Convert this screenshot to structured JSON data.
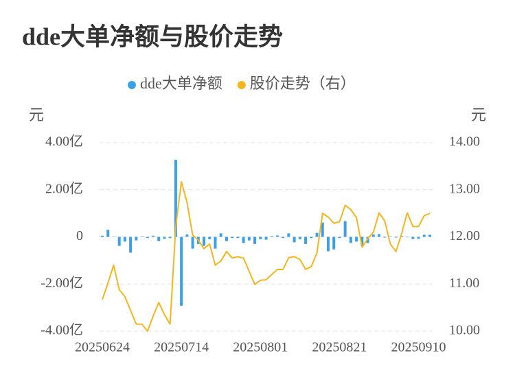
{
  "chart_data": {
    "type": "bar-line",
    "title": "dde大单净额与股价走势",
    "y_label": "元",
    "y2_label": "元",
    "categories": [
      "20250624",
      null,
      null,
      null,
      null,
      null,
      null,
      null,
      null,
      null,
      null,
      null,
      null,
      null,
      "20250714",
      null,
      null,
      null,
      null,
      null,
      null,
      null,
      null,
      null,
      null,
      null,
      null,
      null,
      "20250801",
      null,
      null,
      null,
      null,
      null,
      null,
      null,
      null,
      null,
      null,
      null,
      null,
      null,
      "20250821",
      null,
      null,
      null,
      null,
      null,
      null,
      null,
      null,
      null,
      null,
      null,
      null,
      null,
      "20250910",
      null,
      null
    ],
    "series": [
      {
        "name": "dde大单净额",
        "type": "bar",
        "color": "#3ba0e9",
        "values": [
          0.05,
          0.3,
          0,
          -0.38,
          -0.2,
          -0.67,
          -0.15,
          0.02,
          -0.05,
          0.05,
          -0.18,
          -0.08,
          -0.05,
          3.27,
          -2.92,
          0.1,
          -0.5,
          -0.3,
          -0.38,
          -0.1,
          -0.5,
          0.15,
          -0.18,
          -0.05,
          -0.05,
          -0.26,
          -0.15,
          -0.3,
          -0.1,
          -0.12,
          0.03,
          0.06,
          -0.05,
          0.15,
          -0.23,
          -0.1,
          -0.3,
          -0.05,
          0.17,
          0.61,
          -0.61,
          -0.53,
          -0.05,
          0.67,
          -0.26,
          -0.2,
          -0.38,
          -0.26,
          0.1,
          0.12,
          -0.03,
          0.02,
          -0.03,
          0.04,
          -0.02,
          -0.09,
          -0.08,
          0.09,
          0.09
        ]
      },
      {
        "name": "股价走势（右）",
        "type": "line",
        "axis": "y2",
        "color": "#f5b51d",
        "values": [
          10.67,
          11.02,
          11.4,
          10.88,
          10.73,
          10.44,
          10.15,
          10.15,
          10.0,
          10.32,
          10.61,
          10.35,
          10.15,
          12.22,
          13.17,
          12.73,
          12.04,
          11.93,
          11.75,
          11.85,
          11.4,
          11.49,
          11.69,
          11.55,
          11.58,
          11.55,
          11.27,
          10.99,
          11.08,
          11.09,
          11.2,
          11.31,
          11.31,
          11.56,
          11.58,
          11.52,
          11.31,
          11.37,
          11.66,
          12.5,
          12.42,
          12.29,
          12.32,
          12.67,
          12.58,
          12.41,
          11.78,
          11.96,
          12.1,
          12.51,
          12.34,
          11.85,
          11.69,
          12.07,
          12.51,
          12.22,
          12.22,
          12.45,
          12.5
        ]
      }
    ],
    "ylim": [
      -4,
      4
    ],
    "yticks": [
      {
        "value": -4,
        "label": "-4.00亿"
      },
      {
        "value": -2,
        "label": "-2.00亿"
      },
      0,
      {
        "value": 2,
        "label": "2.00亿"
      },
      {
        "value": 4,
        "label": "4.00亿"
      }
    ],
    "y2lim": [
      10,
      14
    ],
    "y2ticks": [
      {
        "value": 10,
        "label": "10.00"
      },
      {
        "value": 11,
        "label": "11.00"
      },
      {
        "value": 12,
        "label": "12.00"
      },
      {
        "value": 13,
        "label": "13.00"
      },
      {
        "value": 14,
        "label": "14.00"
      }
    ],
    "grid": true
  }
}
